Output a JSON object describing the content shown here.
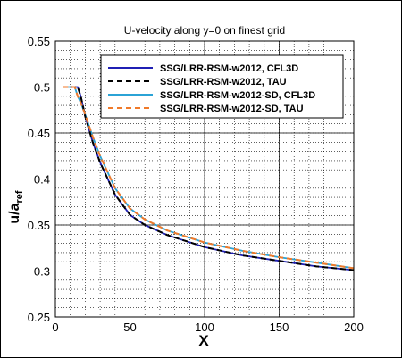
{
  "chart_data": {
    "type": "line",
    "title": "U-velocity along y=0 on finest grid",
    "xlabel": "X",
    "ylabel_main": "u/a",
    "ylabel_sub": "ref",
    "xlim": [
      0,
      200
    ],
    "ylim": [
      0.25,
      0.55
    ],
    "x_ticks": [
      0,
      50,
      100,
      150,
      200
    ],
    "y_ticks": [
      0.25,
      0.3,
      0.35,
      0.4,
      0.45,
      0.5,
      0.55
    ],
    "x_tick_labels": [
      "0",
      "50",
      "100",
      "150",
      "200"
    ],
    "y_tick_labels": [
      "0.25",
      "0.3",
      "0.35",
      "0.4",
      "0.45",
      "0.5",
      "0.55"
    ],
    "grid": true,
    "legend_position": "top-right",
    "series": [
      {
        "name": "SSG/LRR-RSM-w2012, CFL3D",
        "color": "#1f1fb4",
        "dash": "solid",
        "x": [
          10,
          13,
          15,
          17,
          20,
          25,
          30,
          40,
          50,
          60,
          75,
          100,
          125,
          150,
          175,
          200
        ],
        "y": [
          0.5,
          0.5,
          0.5,
          0.49,
          0.468,
          0.44,
          0.418,
          0.383,
          0.361,
          0.35,
          0.339,
          0.326,
          0.317,
          0.311,
          0.305,
          0.301
        ]
      },
      {
        "name": "SSG/LRR-RSM-w2012, TAU",
        "color": "#000000",
        "dash": "dashed",
        "x": [
          10,
          13,
          15,
          17,
          20,
          25,
          30,
          40,
          50,
          60,
          75,
          100,
          125,
          150,
          175,
          200
        ],
        "y": [
          0.5,
          0.5,
          0.5,
          0.49,
          0.468,
          0.44,
          0.418,
          0.383,
          0.361,
          0.35,
          0.339,
          0.326,
          0.317,
          0.311,
          0.305,
          0.301
        ]
      },
      {
        "name": "SSG/LRR-RSM-w2012-SD, CFL3D",
        "color": "#2ba3d6",
        "dash": "solid",
        "x": [
          5,
          10,
          13,
          15,
          17,
          20,
          25,
          30,
          40,
          50,
          60,
          75,
          100,
          125,
          150,
          175,
          200
        ],
        "y": [
          0.5,
          0.5,
          0.5,
          0.49,
          0.483,
          0.47,
          0.446,
          0.425,
          0.39,
          0.368,
          0.356,
          0.344,
          0.331,
          0.322,
          0.315,
          0.309,
          0.303
        ]
      },
      {
        "name": "SSG/LRR-RSM-w2012-SD, TAU",
        "color": "#f07a2a",
        "dash": "dashed",
        "x": [
          5,
          10,
          13,
          15,
          17,
          20,
          25,
          30,
          40,
          50,
          60,
          75,
          100,
          125,
          150,
          175,
          200
        ],
        "y": [
          0.5,
          0.5,
          0.5,
          0.49,
          0.483,
          0.47,
          0.446,
          0.425,
          0.39,
          0.368,
          0.356,
          0.344,
          0.331,
          0.322,
          0.315,
          0.309,
          0.303
        ]
      }
    ]
  }
}
